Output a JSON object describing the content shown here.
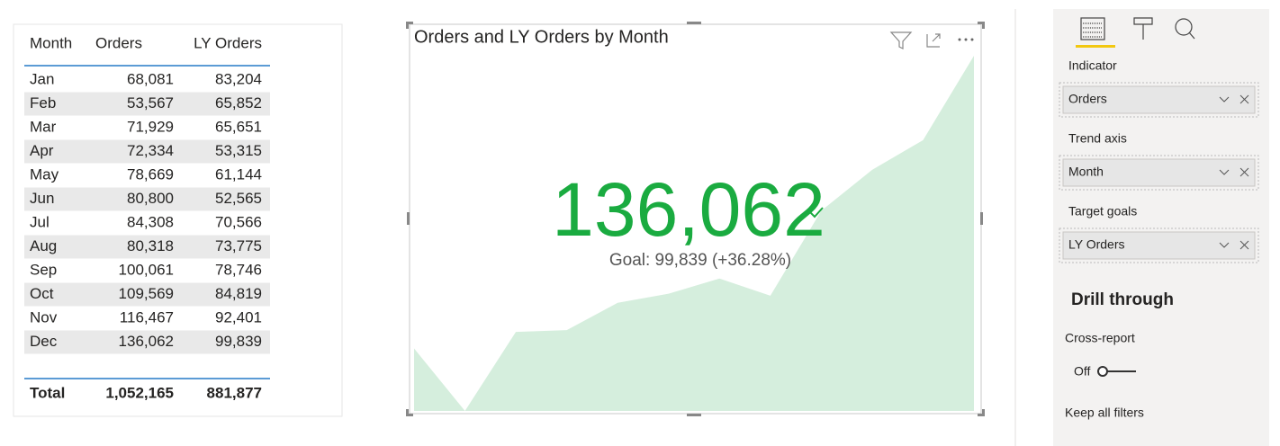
{
  "table": {
    "headers": [
      "Month",
      "Orders",
      "LY Orders"
    ],
    "rows": [
      [
        "Jan",
        "68,081",
        "83,204"
      ],
      [
        "Feb",
        "53,567",
        "65,852"
      ],
      [
        "Mar",
        "71,929",
        "65,651"
      ],
      [
        "Apr",
        "72,334",
        "53,315"
      ],
      [
        "May",
        "78,669",
        "61,144"
      ],
      [
        "Jun",
        "80,800",
        "52,565"
      ],
      [
        "Jul",
        "84,308",
        "70,566"
      ],
      [
        "Aug",
        "80,318",
        "73,775"
      ],
      [
        "Sep",
        "100,061",
        "78,746"
      ],
      [
        "Oct",
        "109,569",
        "84,819"
      ],
      [
        "Nov",
        "116,467",
        "92,401"
      ],
      [
        "Dec",
        "136,062",
        "99,839"
      ]
    ],
    "total": [
      "Total",
      "1,052,165",
      "881,877"
    ]
  },
  "kpi": {
    "title": "Orders and LY Orders by Month",
    "value": "136,062",
    "goal": "Goal: 99,839 (+36.28%)",
    "trend": [
      68081,
      53567,
      71929,
      72334,
      78669,
      80800,
      84308,
      80318,
      100061,
      109569,
      116467,
      136062
    ],
    "trend_color": "#d5eedd",
    "value_color": "#1aab40"
  },
  "pane": {
    "wells": [
      {
        "label": "Indicator",
        "field": "Orders"
      },
      {
        "label": "Trend axis",
        "field": "Month"
      },
      {
        "label": "Target goals",
        "field": "LY Orders"
      }
    ],
    "drill_through": "Drill through",
    "cross_report": "Cross-report",
    "toggle": "Off",
    "keep_all_filters": "Keep all filters"
  }
}
